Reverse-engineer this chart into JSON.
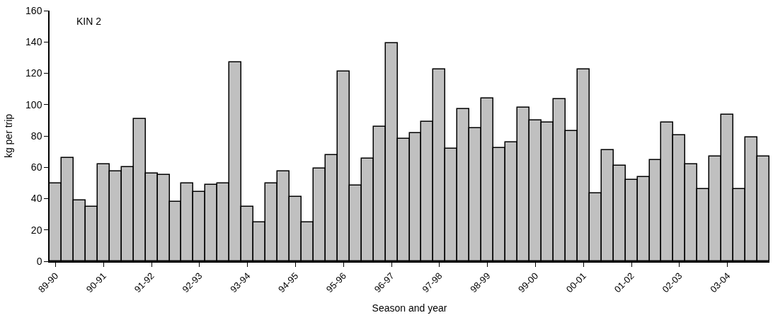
{
  "chart_data": {
    "type": "bar",
    "xlabel": "Season and year",
    "ylabel": "kg per trip",
    "annotations": [
      "KIN 2"
    ],
    "categories": [
      "89-90",
      null,
      null,
      null,
      "90-91",
      null,
      null,
      null,
      "91-92",
      null,
      null,
      null,
      "92-93",
      null,
      null,
      null,
      "93-94",
      null,
      null,
      null,
      "94-95",
      null,
      null,
      null,
      "95-96",
      null,
      null,
      null,
      "96-97",
      null,
      null,
      null,
      "97-98",
      null,
      null,
      null,
      "98-99",
      null,
      null,
      null,
      "99-00",
      null,
      null,
      null,
      "00-01",
      null,
      null,
      null,
      "01-02",
      null,
      null,
      null,
      "02-03",
      null,
      null,
      null,
      "03-04",
      null,
      null,
      null
    ],
    "values": [
      49.5,
      66,
      39,
      35,
      62,
      57.5,
      60,
      91,
      56,
      55,
      38,
      49.5,
      44.5,
      49,
      49.5,
      127,
      35,
      25,
      49.5,
      57.5,
      41,
      25,
      59,
      68,
      121,
      48.5,
      65.5,
      86,
      139,
      78,
      82,
      89,
      122.5,
      72,
      97,
      85,
      104,
      72.5,
      76,
      98,
      90,
      88.5,
      103.5,
      83,
      122.5,
      43.5,
      71,
      61,
      52,
      54,
      64.5,
      88.5,
      80.5,
      62,
      46,
      67,
      93.5,
      46,
      79,
      67
    ],
    "color": "#c0c0c0",
    "ylim": [
      0,
      160
    ],
    "yticks": [
      0,
      20,
      40,
      60,
      80,
      100,
      120,
      140,
      160
    ],
    "grid": false,
    "legend": false
  }
}
